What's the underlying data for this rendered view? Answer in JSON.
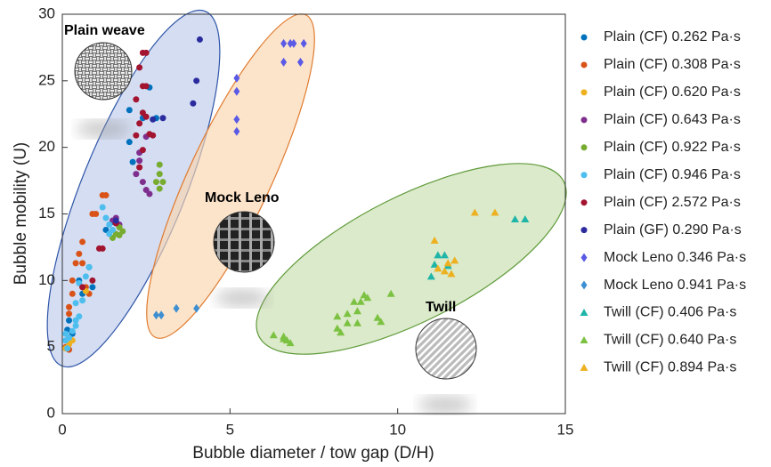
{
  "chart_data": {
    "type": "scatter",
    "xlabel": "Bubble diameter / tow gap (D/H)",
    "ylabel": "Bubble mobility (U)",
    "annotations": [
      "Plain weave",
      "Mock Leno",
      "Twill"
    ],
    "xlim": [
      0,
      15
    ],
    "xticks": [
      0,
      5,
      10,
      15
    ],
    "ylim": [
      0,
      30
    ],
    "yticks": [
      0,
      5,
      10,
      15,
      20,
      25,
      30
    ],
    "legend": "right",
    "series": [
      {
        "name": "Plain (CF) 0.262 Pa·s",
        "color": "#0072BD",
        "marker": "circle",
        "x": [
          2,
          2.6,
          2.4,
          2.8,
          2,
          2.1,
          1.5,
          1.3,
          0.8,
          0.5,
          0.2,
          0.15,
          0.9,
          0.6,
          0.3
        ],
        "values": [
          22.8,
          24.5,
          22.2,
          22.2,
          20.4,
          18.9,
          14.4,
          13.8,
          11,
          10,
          7,
          6.3,
          9.5,
          9,
          6
        ]
      },
      {
        "name": "Plain (CF) 0.308 Pa·s",
        "color": "#D95319",
        "marker": "circle",
        "x": [
          1.3,
          1.2,
          1,
          0.9,
          0.6,
          0.5,
          0.4,
          0.6,
          0.3,
          0.3,
          0.2,
          0.2,
          0.7,
          0.8,
          0.1,
          0.2
        ],
        "values": [
          16.4,
          16.4,
          15,
          15,
          12.9,
          12,
          11.3,
          11.3,
          10,
          9,
          8,
          7.5,
          9.5,
          9,
          5,
          4.8
        ]
      },
      {
        "name": "Plain (CF) 0.620 Pa·s",
        "color": "#EDB120",
        "marker": "circle",
        "x": [
          0.1,
          0.2,
          0.7,
          0.6,
          0.3
        ],
        "values": [
          4.9,
          5.2,
          9.2,
          9.5,
          5.5
        ]
      },
      {
        "name": "Plain (CF) 0.643 Pa·s",
        "color": "#7E2F8E",
        "marker": "circle",
        "x": [
          2.4,
          2.5,
          2.2,
          2.3,
          1.6,
          1.7,
          1.5,
          2.5,
          2.3,
          2.6
        ],
        "values": [
          17.4,
          16.8,
          18,
          19.6,
          14.7,
          14.2,
          14.5,
          20.8,
          19,
          16.5
        ]
      },
      {
        "name": "Plain (CF) 0.922 Pa·s",
        "color": "#77AC30",
        "marker": "circle",
        "x": [
          2.9,
          2.9,
          2.8,
          3,
          2.9,
          1.7,
          1.6,
          1.5,
          1.8,
          1.7
        ],
        "values": [
          18.7,
          18,
          17.4,
          17.4,
          16.9,
          14,
          13.5,
          13.2,
          13.7,
          13.4
        ]
      },
      {
        "name": "Plain (CF) 0.946 Pa·s",
        "color": "#4DBEEE",
        "marker": "circle",
        "x": [
          1.2,
          1.3,
          1.4,
          1.4,
          1.5,
          0.8,
          0.7,
          0.5,
          0.4,
          0.5,
          0.4,
          0.3,
          0.2,
          0.1,
          0.15,
          0.6,
          0.4,
          0.1
        ],
        "values": [
          15.5,
          14.7,
          14.2,
          13.5,
          13.8,
          11,
          10.3,
          9.8,
          8.3,
          7.3,
          6.6,
          6.2,
          5.7,
          5.5,
          4.9,
          8.5,
          7,
          6
        ]
      },
      {
        "name": "Plain (CF) 2.572 Pa·s",
        "color": "#A2142F",
        "marker": "circle",
        "x": [
          2.4,
          2.5,
          2.3,
          2.4,
          2.5,
          2.2,
          2.4,
          2.3,
          2.5,
          2.2,
          2.6,
          2.4,
          2.3,
          1.6,
          1.2,
          1.1,
          0.9,
          0.6,
          2.7
        ],
        "values": [
          27.1,
          27.1,
          26,
          24.6,
          24.6,
          23.6,
          22.6,
          21.8,
          22.3,
          20.9,
          21,
          19.8,
          18.5,
          14.3,
          12.4,
          12.4,
          10,
          9.5,
          20.9
        ]
      },
      {
        "name": "Plain (GF) 0.290 Pa·s",
        "color": "#2B2B9E",
        "marker": "circle",
        "x": [
          4.1,
          4,
          3.9,
          3,
          2.7,
          1.6
        ],
        "values": [
          28.1,
          25,
          23.3,
          22.2,
          22.1,
          14.5
        ]
      },
      {
        "name": "Mock Leno 0.346 Pa·s",
        "color": "#5A5AE6",
        "marker": "diamond",
        "x": [
          5.2,
          5.2,
          5.2,
          5.2,
          6.6,
          6.8,
          6.9,
          7.2,
          6.6,
          7.1
        ],
        "values": [
          25.2,
          24.2,
          22.1,
          21.2,
          27.8,
          27.8,
          27.8,
          27.8,
          26.4,
          26.4
        ]
      },
      {
        "name": "Mock Leno 0.941 Pa·s",
        "color": "#3D8FD1",
        "marker": "diamond",
        "x": [
          2.8,
          2.95,
          3.4,
          4
        ],
        "values": [
          7.4,
          7.4,
          7.9,
          7.9
        ]
      },
      {
        "name": "Twill (CF) 0.406 Pa·s",
        "color": "#1FB5A8",
        "marker": "triangle",
        "x": [
          11.2,
          11.4,
          11.1,
          11,
          11.5,
          13.5,
          13.8
        ],
        "values": [
          11.9,
          11.9,
          11.2,
          10.3,
          11.1,
          14.6,
          14.6
        ]
      },
      {
        "name": "Twill (CF) 0.640 Pa·s",
        "color": "#7CC242",
        "marker": "triangle",
        "x": [
          6.3,
          6.6,
          6.7,
          6.8,
          6.6,
          8.2,
          8.2,
          8.3,
          8.5,
          8.7,
          8.9,
          9,
          8.8,
          9.1,
          9.4,
          9.5,
          9.8,
          8.5,
          8.8
        ],
        "values": [
          5.9,
          5.8,
          5.5,
          5.3,
          5.6,
          7.3,
          6.4,
          6.1,
          6.8,
          8.4,
          8.4,
          8.9,
          7.7,
          8.7,
          7.2,
          6.9,
          9,
          7.5,
          6.8
        ]
      },
      {
        "name": "Twill (CF) 0.894 Pa·s",
        "color": "#EDB120",
        "marker": "triangle",
        "x": [
          11.1,
          11.2,
          11.5,
          11.7,
          11.6,
          12.3,
          12.9,
          11.4
        ],
        "values": [
          13,
          10.9,
          11.3,
          11.5,
          10.5,
          15.1,
          15.1,
          10.7
        ]
      }
    ]
  }
}
